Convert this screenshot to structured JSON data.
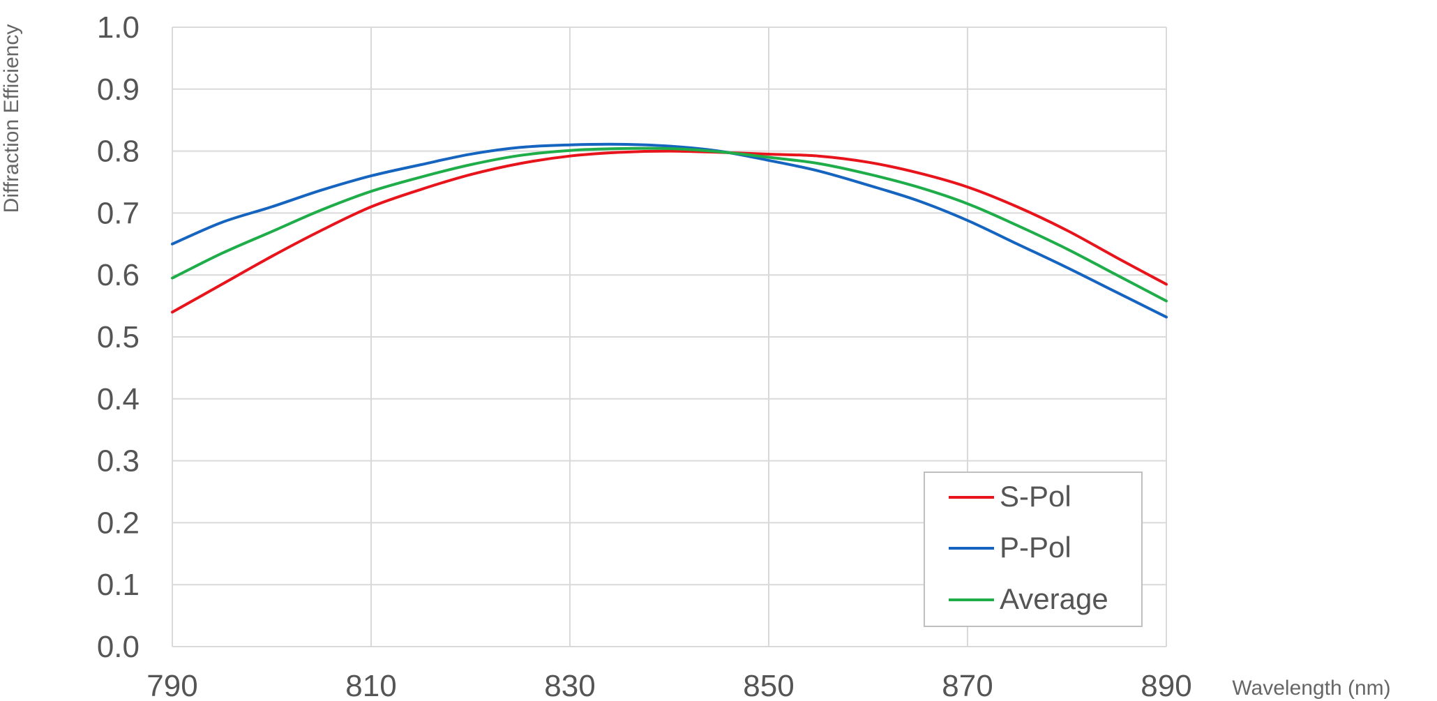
{
  "chart_data": {
    "type": "line",
    "title": "",
    "xlabel": "Wavelength (nm)",
    "ylabel": "Diffraction Efficiency",
    "xlim": [
      790,
      890
    ],
    "ylim": [
      0.0,
      1.0
    ],
    "x_ticks": [
      "790",
      "810",
      "830",
      "850",
      "870",
      "890"
    ],
    "y_ticks": [
      "0.0",
      "0.1",
      "0.2",
      "0.3",
      "0.4",
      "0.5",
      "0.6",
      "0.7",
      "0.8",
      "0.9",
      "1.0"
    ],
    "grid": true,
    "legend_position": "bottom-right",
    "x": [
      790,
      795,
      800,
      805,
      810,
      815,
      820,
      825,
      830,
      835,
      840,
      845,
      850,
      855,
      860,
      865,
      870,
      875,
      880,
      885,
      890
    ],
    "series": [
      {
        "name": "S-Pol",
        "color": "#e8141b",
        "values": [
          0.54,
          0.585,
          0.63,
          0.672,
          0.71,
          0.738,
          0.762,
          0.78,
          0.792,
          0.798,
          0.8,
          0.798,
          0.795,
          0.792,
          0.782,
          0.765,
          0.742,
          0.71,
          0.672,
          0.628,
          0.585
        ]
      },
      {
        "name": "P-Pol",
        "color": "#1565c0",
        "values": [
          0.65,
          0.685,
          0.71,
          0.737,
          0.76,
          0.778,
          0.795,
          0.806,
          0.81,
          0.811,
          0.808,
          0.8,
          0.785,
          0.768,
          0.745,
          0.72,
          0.688,
          0.65,
          0.612,
          0.572,
          0.532
        ]
      },
      {
        "name": "Average",
        "color": "#1fad4a",
        "values": [
          0.595,
          0.635,
          0.67,
          0.705,
          0.735,
          0.758,
          0.778,
          0.793,
          0.801,
          0.804,
          0.804,
          0.799,
          0.79,
          0.78,
          0.763,
          0.742,
          0.715,
          0.68,
          0.642,
          0.6,
          0.558
        ]
      }
    ]
  }
}
